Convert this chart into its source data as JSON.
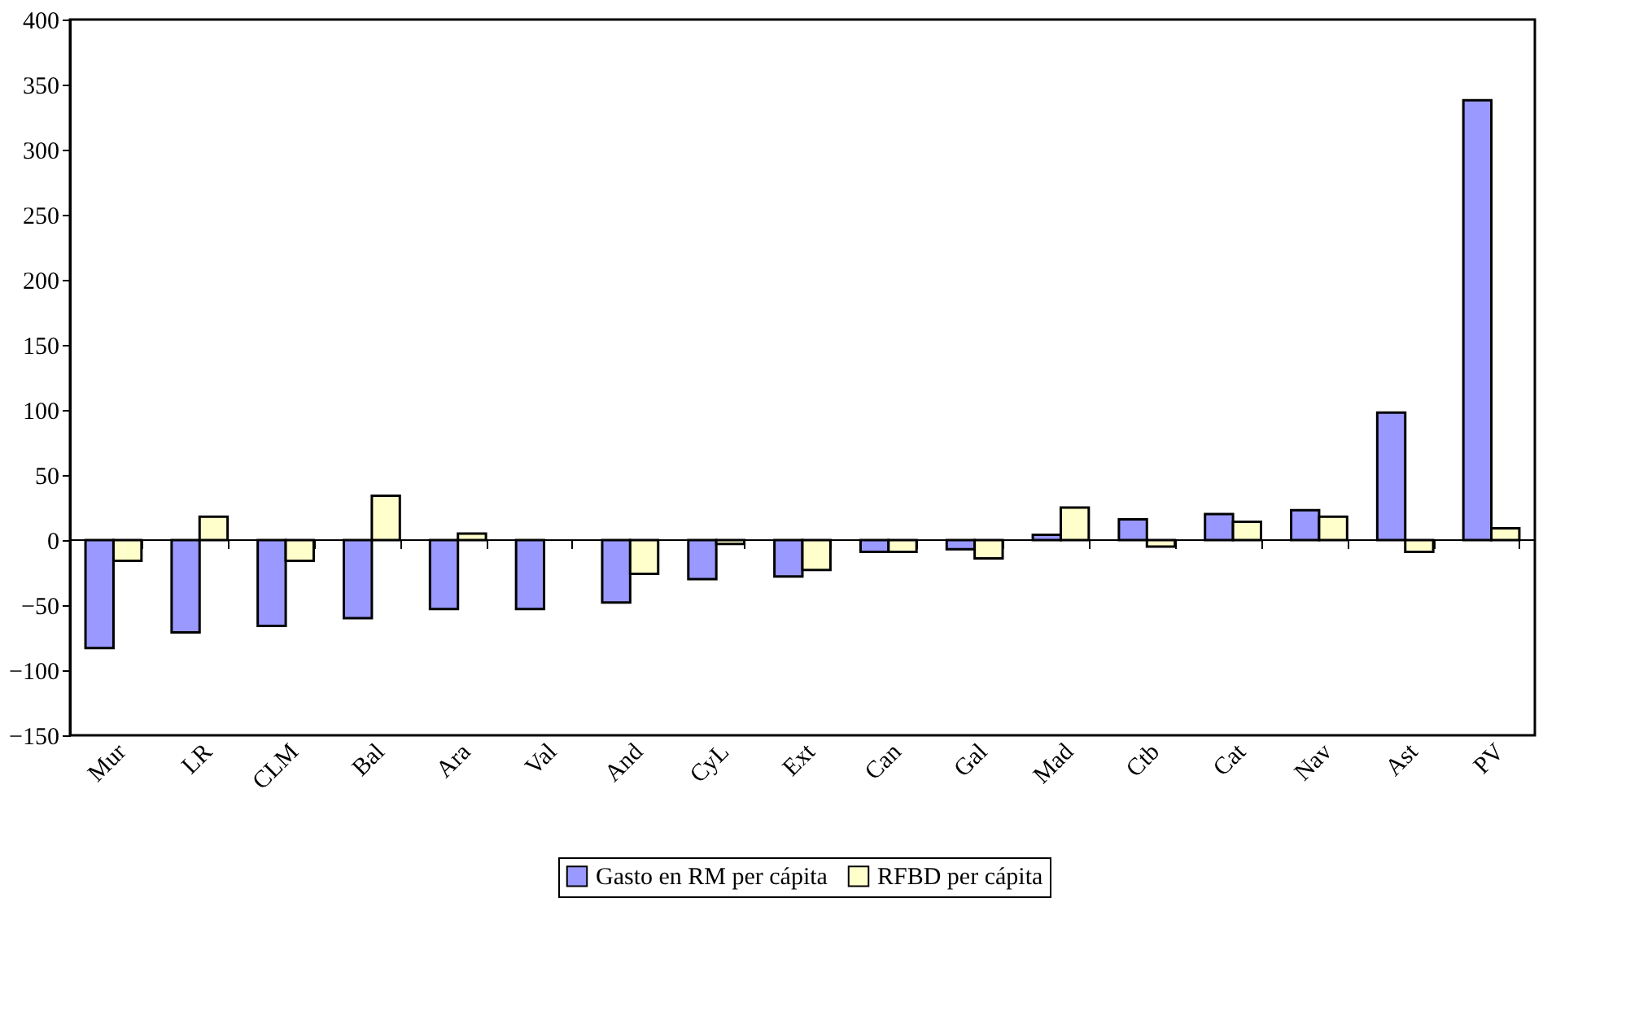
{
  "chart_data": {
    "type": "bar",
    "categories": [
      "Mur",
      "LR",
      "CLM",
      "Bal",
      "Ara",
      "Val",
      "And",
      "CyL",
      "Ext",
      "Can",
      "Gal",
      "Mad",
      "Ctb",
      "Cat",
      "Nav",
      "Ast",
      "PV"
    ],
    "series": [
      {
        "name": "Gasto en RM per cápita",
        "color": "#9999ff",
        "values": [
          -83,
          -71,
          -66,
          -60,
          -53,
          -53,
          -48,
          -30,
          -28,
          -9,
          -7,
          4,
          16,
          20,
          23,
          98,
          338
        ]
      },
      {
        "name": "RFBD per cápita",
        "color": "#ffffcc",
        "values": [
          -16,
          18,
          -16,
          34,
          5,
          null,
          -26,
          -3,
          -23,
          -9,
          -14,
          25,
          -5,
          14,
          18,
          -9,
          9
        ]
      }
    ],
    "ylim": [
      -150,
      400
    ],
    "yticks": [
      -150,
      -100,
      -50,
      0,
      50,
      100,
      150,
      200,
      250,
      300,
      350,
      400
    ],
    "grid": false,
    "ref_lines": [
      {
        "axis": "y",
        "value": 0,
        "color": "#000000"
      }
    ],
    "legend": "bottom"
  }
}
